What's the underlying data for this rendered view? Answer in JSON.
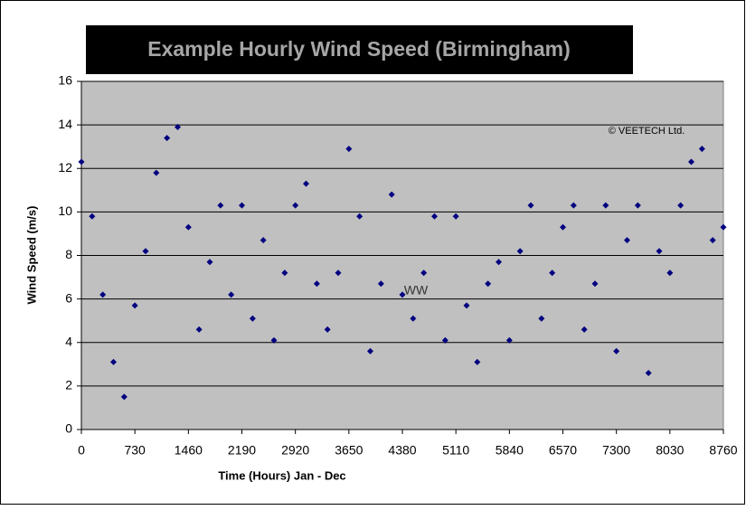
{
  "chart_data": {
    "type": "scatter",
    "title": "Example Hourly Wind Speed (Birmingham)",
    "x_label": "Time (Hours) Jan - Dec",
    "y_label": "Wind Speed (m/s)",
    "annotations": [
      "© VEETECH Ltd.",
      "WW"
    ],
    "xlim": [
      0,
      8760
    ],
    "xticks": [
      0,
      730,
      1460,
      2190,
      2920,
      3650,
      4380,
      5110,
      5840,
      6570,
      7300,
      8030,
      8760
    ],
    "ylim": [
      0,
      16
    ],
    "yticks": [
      0,
      2,
      4,
      6,
      8,
      10,
      12,
      14,
      16
    ],
    "grid": true,
    "color": "#000080",
    "background": "#c0c0c0",
    "x": [
      0,
      146,
      292,
      438,
      584,
      730,
      876,
      1022,
      1168,
      1314,
      1460,
      1606,
      1752,
      1898,
      2044,
      2190,
      2336,
      2482,
      2628,
      2774,
      2920,
      3066,
      3212,
      3358,
      3504,
      3650,
      3796,
      3942,
      4088,
      4234,
      4380,
      4526,
      4672,
      4818,
      4964,
      5110,
      5256,
      5402,
      5548,
      5694,
      5840,
      5986,
      6132,
      6278,
      6424,
      6570,
      6716,
      6862,
      7008,
      7154,
      7300,
      7446,
      7592,
      7738,
      7884,
      8030,
      8176,
      8322,
      8468,
      8614,
      8760
    ],
    "values": [
      12.3,
      9.8,
      6.2,
      3.1,
      1.5,
      5.7,
      8.2,
      11.8,
      13.4,
      13.9,
      9.3,
      4.6,
      7.7,
      10.3,
      6.2,
      10.3,
      5.1,
      8.7,
      4.1,
      7.2,
      10.3,
      11.3,
      6.7,
      4.6,
      7.2,
      12.9,
      9.8,
      3.6,
      6.7,
      10.8,
      6.2,
      5.1,
      7.2,
      9.8,
      4.1,
      9.8,
      5.7,
      3.1,
      6.7,
      7.7,
      4.1,
      8.2,
      10.3,
      5.1,
      7.2,
      9.3,
      10.3,
      4.6,
      6.7,
      10.3,
      3.6,
      8.7,
      10.3,
      2.6,
      8.2,
      7.2,
      10.3,
      12.3,
      12.9,
      8.7,
      9.3
    ]
  }
}
